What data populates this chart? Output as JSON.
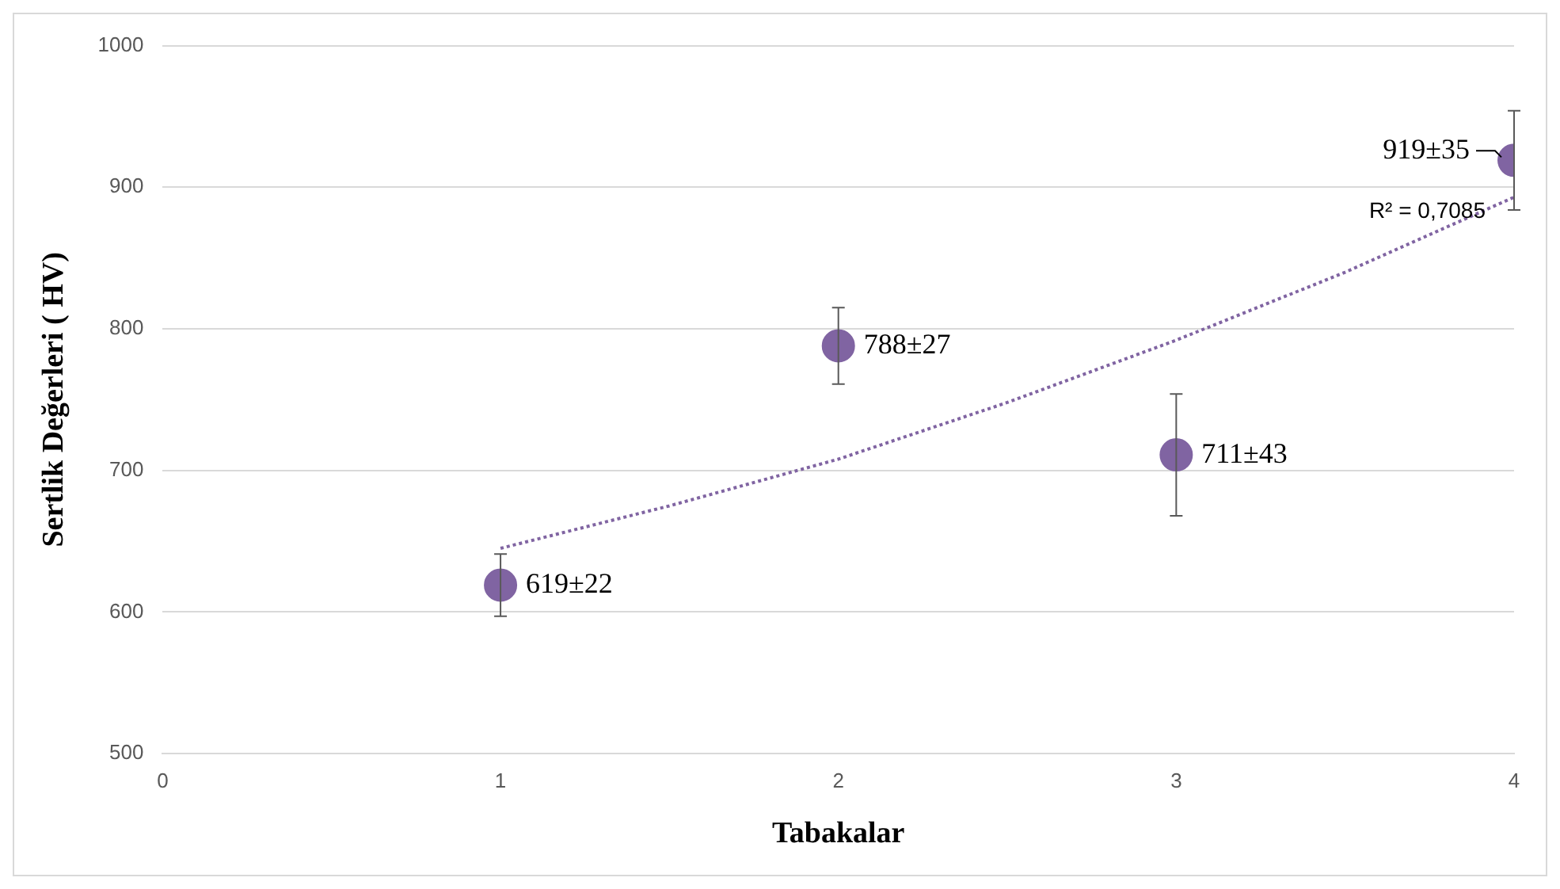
{
  "chart_data": {
    "type": "scatter",
    "xlabel": "Tabakalar",
    "ylabel": "Sertlik Değerleri ( HV)",
    "x": [
      1,
      2,
      3,
      4
    ],
    "series": [
      {
        "color": "#8064a2",
        "values": [
          619,
          788,
          711,
          919
        ],
        "errors": [
          22,
          27,
          43,
          35
        ],
        "value_labels": [
          "619±22",
          "788±27",
          "711±43",
          "919±35"
        ],
        "marker": "circle"
      },
      {
        "type": "line",
        "color": "#8064a2",
        "line_style": "dotted",
        "marker": "none",
        "x": [
          1,
          1.5,
          2,
          2.5,
          3,
          3.5,
          4
        ],
        "values": [
          645,
          675,
          708,
          748,
          792,
          840,
          893
        ]
      }
    ],
    "annotations": [
      "R² = 0,7085"
    ],
    "xlim": [
      0,
      4
    ],
    "xticks": [
      0,
      1,
      2,
      3,
      4
    ],
    "ylim": [
      500,
      1000
    ],
    "yticks": [
      500,
      600,
      700,
      800,
      900,
      1000
    ],
    "grid": "y",
    "legend": false
  }
}
